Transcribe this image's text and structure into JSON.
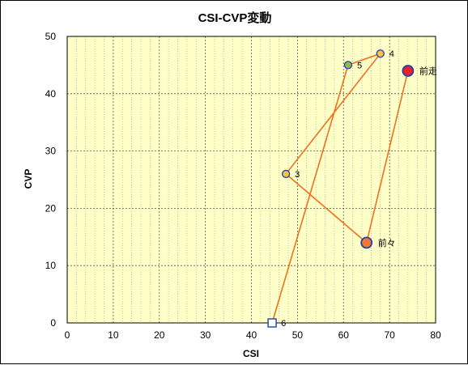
{
  "chart_data": {
    "type": "scatter",
    "title": "CSI-CVP変動",
    "xlabel": "CSI",
    "ylabel": "CVP",
    "xlim": [
      0,
      80
    ],
    "ylim": [
      0,
      50
    ],
    "xticks": [
      "0",
      "10",
      "20",
      "30",
      "40",
      "50",
      "60",
      "70",
      "80"
    ],
    "yticks": [
      "0",
      "10",
      "20",
      "30",
      "40",
      "50"
    ],
    "grid": true,
    "points": [
      {
        "label": "6",
        "x": 44.5,
        "y": 0,
        "marker": "square",
        "fill": "#ffffff",
        "stroke": "#1f3fb0"
      },
      {
        "label": "5",
        "x": 61,
        "y": 45,
        "marker": "circle",
        "fill": "#8dbf3a",
        "stroke": "#1f3fb0"
      },
      {
        "label": "4",
        "x": 68,
        "y": 47,
        "marker": "circle",
        "fill": "#f5c242",
        "stroke": "#1f3fb0"
      },
      {
        "label": "3",
        "x": 47.5,
        "y": 26,
        "marker": "circle",
        "fill": "#f5c242",
        "stroke": "#1f3fb0"
      },
      {
        "label": "前々",
        "x": 65,
        "y": 14,
        "marker": "circle",
        "fill": "#f07830",
        "stroke": "#1f3fb0"
      },
      {
        "label": "前走",
        "x": 74,
        "y": 44,
        "marker": "circle",
        "fill": "#e8202a",
        "stroke": "#1f3fb0"
      }
    ],
    "line_color": "#f07020",
    "plot_bg": "#ffffc8"
  }
}
